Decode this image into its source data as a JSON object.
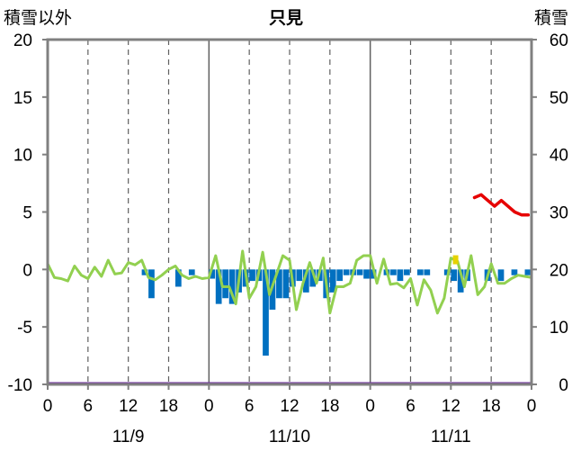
{
  "chart_data": {
    "type": "bar",
    "title": "只見",
    "left_axis_label": "積雪以外",
    "right_axis_label": "積雪",
    "left_axis": {
      "min": -10,
      "max": 20,
      "ticks": [
        20,
        15,
        10,
        5,
        0,
        -5,
        -10
      ]
    },
    "right_axis": {
      "min": 0,
      "max": 60,
      "ticks": [
        60,
        50,
        40,
        30,
        20,
        10,
        0
      ]
    },
    "x_axis": {
      "min": 0,
      "max": 72,
      "tick_hours": [
        0,
        6,
        12,
        18,
        24,
        30,
        36,
        42,
        48,
        54,
        60,
        66,
        72
      ],
      "tick_labels": [
        "0",
        "6",
        "12",
        "18",
        "0",
        "6",
        "12",
        "18",
        "0",
        "6",
        "12",
        "18",
        "0"
      ],
      "day_labels": [
        {
          "label": "11/9",
          "hour": 12
        },
        {
          "label": "11/10",
          "hour": 36
        },
        {
          "label": "11/11",
          "hour": 60
        }
      ]
    },
    "colors": {
      "bars": "#0070c0",
      "line_green": "#92d050",
      "line_red": "#e60000",
      "marker_yellow": "#e6d200",
      "baseline": "#7030a0",
      "frame": "#808080",
      "grid": "#606060"
    },
    "series": [
      {
        "kind": "bar",
        "axis": "left",
        "hours": [
          14,
          15,
          19,
          21,
          24,
          25,
          26,
          27,
          28,
          29,
          30,
          31,
          32,
          33,
          34,
          35,
          36,
          37,
          38,
          39,
          40,
          41,
          42,
          43,
          44,
          45,
          46,
          47,
          48,
          50,
          51,
          52,
          53,
          55,
          56,
          59,
          60,
          61,
          62,
          65,
          67,
          69,
          71
        ],
        "values": [
          -0.5,
          -2.5,
          -1.5,
          -0.5,
          -0.8,
          -3,
          -2.5,
          -3,
          -2,
          -1.5,
          -1,
          -1,
          -7.5,
          -3.5,
          -2.5,
          -2.5,
          -1.5,
          -1,
          -2,
          -1.5,
          -1,
          -2.5,
          -2,
          -1,
          -0.5,
          -0.5,
          -0.5,
          -0.8,
          -0.8,
          -0.5,
          -0.5,
          -1,
          -0.5,
          -0.5,
          -0.5,
          -0.5,
          -1,
          -2,
          -1,
          -1,
          -1,
          -0.5,
          -0.5
        ]
      },
      {
        "kind": "line",
        "axis": "left",
        "hours": [
          0,
          1,
          2,
          3,
          4,
          5,
          6,
          7,
          8,
          9,
          10,
          11,
          12,
          13,
          14,
          15,
          16,
          17,
          18,
          19,
          20,
          21,
          22,
          23,
          24,
          25,
          26,
          27,
          28,
          29,
          30,
          31,
          32,
          33,
          34,
          35,
          36,
          37,
          38,
          39,
          40,
          41,
          42,
          43,
          44,
          45,
          46,
          47,
          48,
          49,
          50,
          51,
          52,
          53,
          54,
          55,
          56,
          57,
          58,
          59,
          60,
          61,
          62,
          63,
          64,
          65,
          66,
          67,
          68,
          69,
          70,
          71,
          72
        ],
        "values": [
          0.5,
          -0.7,
          -0.8,
          -1,
          0.3,
          -0.5,
          -0.8,
          0.2,
          -0.6,
          0.8,
          -0.4,
          -0.3,
          0.6,
          0.4,
          0.8,
          -0.7,
          -0.9,
          -0.5,
          0,
          0.3,
          -0.5,
          -0.8,
          -0.6,
          -0.8,
          -0.7,
          1.2,
          -1.5,
          -1.5,
          -3,
          1.6,
          -2.5,
          -1.5,
          1.5,
          -2.2,
          -0.5,
          1.2,
          0.8,
          -3.5,
          -1.2,
          0.6,
          -1.2,
          1,
          -3.8,
          -1.5,
          -1.5,
          -1.2,
          0.8,
          1.2,
          1.2,
          -1.2,
          0.9,
          -1.3,
          -1.2,
          -1.6,
          -0.8,
          -3.1,
          -0.9,
          -1.8,
          -3.8,
          -2.5,
          1,
          0.7,
          -1.5,
          1.2,
          -2.2,
          -1.5,
          0.5,
          -1.2,
          -1.2,
          -0.8,
          -0.5,
          -0.6,
          -0.7
        ]
      },
      {
        "kind": "line",
        "axis": "right",
        "hours": [
          63.5,
          64.5,
          65.5,
          66.5,
          67.5,
          68.5,
          69.5,
          70.5,
          71.5
        ],
        "values": [
          32.5,
          33,
          32,
          31,
          32,
          31,
          30,
          29.5,
          29.5
        ]
      },
      {
        "kind": "marker",
        "axis": "left",
        "hours": [
          60.7
        ],
        "values": [
          1
        ]
      }
    ]
  }
}
